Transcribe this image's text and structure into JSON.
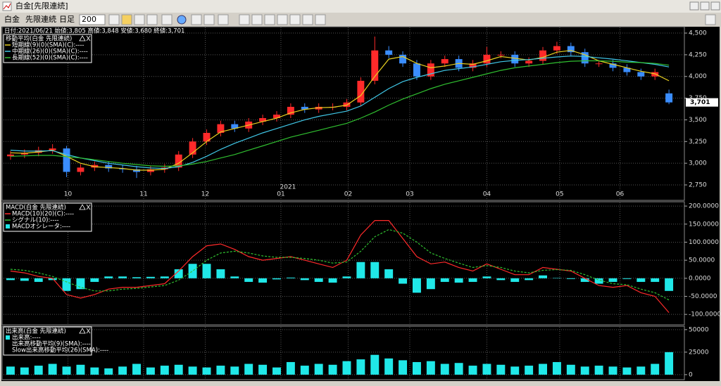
{
  "window": {
    "title": "白金[先限連続]",
    "toolbar": [
      "白金",
      "先限連続",
      "日足",
      "200"
    ]
  },
  "chart_data": [
    {
      "type": "candlestick",
      "info": "日付:2021/06/21 始値:3,805 高値:3,848 安値:3,680 終値:3,701",
      "legend_title": "移動平均(白金 先限連続)",
      "up_color": "#ff2a2a",
      "down_color": "#3a8dff",
      "open": [
        3080,
        3100,
        3120,
        3150,
        3170,
        2900,
        2950,
        2980,
        2940,
        2930,
        2900,
        2930,
        2950,
        3100,
        3250,
        3350,
        3450,
        3400,
        3480,
        3520,
        3560,
        3650,
        3620,
        3650,
        3650,
        3700,
        3950,
        4300,
        4250,
        4150,
        4000,
        4150,
        4200,
        4100,
        4150,
        4250,
        4250,
        4150,
        4180,
        4300,
        4350,
        4280,
        4150,
        4150,
        4100,
        4050,
        4000,
        3805
      ],
      "high": [
        3140,
        3160,
        3190,
        3220,
        3200,
        2990,
        3020,
        3020,
        2980,
        2970,
        2970,
        2990,
        3140,
        3290,
        3390,
        3490,
        3490,
        3520,
        3560,
        3600,
        3690,
        3690,
        3690,
        3690,
        3740,
        3990,
        4460,
        4350,
        4290,
        4190,
        4190,
        4240,
        4240,
        4190,
        4340,
        4290,
        4290,
        4220,
        4340,
        4400,
        4390,
        4320,
        4190,
        4190,
        4140,
        4090,
        4090,
        3848
      ],
      "low": [
        3040,
        3060,
        3080,
        3110,
        2840,
        2860,
        2910,
        2900,
        2890,
        2830,
        2860,
        2890,
        2910,
        3060,
        3210,
        3310,
        3360,
        3360,
        3440,
        3480,
        3520,
        3580,
        3580,
        3610,
        3610,
        3660,
        3910,
        4210,
        4110,
        3960,
        3960,
        4110,
        4060,
        4060,
        4110,
        4210,
        4110,
        4110,
        4140,
        4260,
        4240,
        4110,
        4110,
        4060,
        4010,
        3960,
        3960,
        3680
      ],
      "close": [
        3100,
        3120,
        3150,
        3170,
        2900,
        2950,
        2980,
        2940,
        2930,
        2900,
        2930,
        2950,
        3100,
        3250,
        3350,
        3450,
        3400,
        3480,
        3520,
        3560,
        3650,
        3620,
        3650,
        3650,
        3700,
        3950,
        4300,
        4250,
        4150,
        4000,
        4150,
        4200,
        4100,
        4150,
        4250,
        4250,
        4150,
        4180,
        4300,
        4350,
        4280,
        4150,
        4150,
        4100,
        4050,
        4000,
        4050,
        3701
      ],
      "series": [
        {
          "name": "短期線(9)(0)(SMA)(C):----",
          "color": "#e8d020",
          "values": [
            3120,
            3115,
            3130,
            3150,
            3080,
            3000,
            2960,
            2950,
            2940,
            2920,
            2920,
            2930,
            3000,
            3120,
            3250,
            3360,
            3400,
            3440,
            3480,
            3520,
            3580,
            3620,
            3640,
            3645,
            3670,
            3780,
            4000,
            4200,
            4230,
            4150,
            4100,
            4120,
            4150,
            4140,
            4180,
            4230,
            4210,
            4190,
            4220,
            4280,
            4300,
            4250,
            4180,
            4140,
            4100,
            4060,
            4030,
            3950
          ]
        },
        {
          "name": "中期線(26)(0)(SMA)(C):----",
          "color": "#40c8e8",
          "values": [
            3150,
            3140,
            3140,
            3145,
            3100,
            3060,
            3030,
            3000,
            2980,
            2960,
            2945,
            2940,
            2960,
            3010,
            3080,
            3160,
            3230,
            3290,
            3350,
            3400,
            3450,
            3500,
            3540,
            3570,
            3600,
            3660,
            3760,
            3860,
            3940,
            3990,
            4030,
            4070,
            4090,
            4110,
            4140,
            4170,
            4185,
            4195,
            4210,
            4225,
            4235,
            4230,
            4215,
            4200,
            4180,
            4160,
            4140,
            4110
          ]
        },
        {
          "name": "長期線(52)(0)(SMA)(C):----",
          "color": "#30c030",
          "values": [
            3080,
            3085,
            3090,
            3090,
            3075,
            3060,
            3040,
            3020,
            3000,
            2985,
            2970,
            2965,
            2970,
            2990,
            3020,
            3060,
            3100,
            3150,
            3200,
            3250,
            3300,
            3340,
            3380,
            3420,
            3460,
            3520,
            3590,
            3670,
            3740,
            3800,
            3860,
            3910,
            3950,
            3990,
            4030,
            4070,
            4100,
            4120,
            4140,
            4160,
            4175,
            4180,
            4180,
            4175,
            4165,
            4160,
            4150,
            4130
          ]
        }
      ],
      "xlim": [
        -0.5,
        48
      ],
      "xticks": [
        {
          "value": 4.1,
          "label": "10"
        },
        {
          "value": 9.5,
          "label": "11"
        },
        {
          "value": 13.9,
          "label": "12"
        },
        {
          "value": 19.3,
          "label": "01"
        },
        {
          "value": 24.1,
          "label": "02"
        },
        {
          "value": 28.5,
          "label": "03"
        },
        {
          "value": 34.0,
          "label": "04"
        },
        {
          "value": 39.2,
          "label": "05"
        },
        {
          "value": 43.5,
          "label": "06"
        }
      ],
      "year_label": "2021",
      "ylim": [
        2588,
        4557
      ],
      "yticks": [
        {
          "value": 2750,
          "label": "2,750"
        },
        {
          "value": 3000,
          "label": "3,000"
        },
        {
          "value": 3250,
          "label": "3,250"
        },
        {
          "value": 3500,
          "label": "3,500"
        },
        {
          "value": 3750,
          "label": "3,750"
        },
        {
          "value": 4000,
          "label": "4,000"
        },
        {
          "value": 4250,
          "label": "4,250"
        },
        {
          "value": 4500,
          "label": "4,500"
        }
      ],
      "last_value": 3701,
      "last_label": "3,701",
      "grid": true
    },
    {
      "type": "macd",
      "legend_title": "MACD(白金 先限連続)",
      "series": [
        {
          "name": "MACD(10)(20)(C):----",
          "color": "#ff2a2a",
          "kind": "line",
          "values": [
            20,
            15,
            5,
            0,
            -45,
            -55,
            -45,
            -30,
            -25,
            -25,
            -20,
            -15,
            20,
            60,
            90,
            95,
            80,
            60,
            50,
            55,
            60,
            50,
            40,
            30,
            50,
            120,
            160,
            160,
            110,
            60,
            40,
            45,
            30,
            20,
            40,
            25,
            10,
            10,
            30,
            25,
            20,
            0,
            -20,
            -25,
            -20,
            -40,
            -50,
            -95
          ]
        },
        {
          "name": "シグナル(10):----",
          "color": "#30c030",
          "kind": "dashed",
          "values": [
            25,
            22,
            15,
            5,
            -10,
            -25,
            -35,
            -35,
            -30,
            -28,
            -24,
            -20,
            -5,
            20,
            50,
            70,
            75,
            70,
            62,
            58,
            58,
            55,
            50,
            42,
            45,
            75,
            115,
            135,
            125,
            100,
            70,
            55,
            42,
            30,
            35,
            30,
            20,
            15,
            22,
            24,
            22,
            10,
            -5,
            -15,
            -18,
            -30,
            -40,
            -60
          ]
        },
        {
          "name": "MACDオシレータ:----",
          "color": "#20e8e8",
          "kind": "bar",
          "values": [
            -5,
            -7,
            -10,
            -5,
            -35,
            -30,
            -10,
            5,
            5,
            3,
            4,
            5,
            25,
            40,
            40,
            25,
            5,
            -10,
            -12,
            -3,
            2,
            -5,
            -10,
            -12,
            5,
            45,
            45,
            25,
            -15,
            -40,
            -30,
            -10,
            -12,
            -10,
            5,
            -5,
            -10,
            -5,
            8,
            1,
            -2,
            -10,
            -15,
            -10,
            -2,
            -10,
            -10,
            -35
          ]
        }
      ],
      "ylim": [
        -125,
        206
      ],
      "yticks": [
        {
          "value": -100,
          "label": "-100.0000"
        },
        {
          "value": -50,
          "label": "-50.0000"
        },
        {
          "value": 0,
          "label": "0.0000"
        },
        {
          "value": 50,
          "label": "50.0000"
        },
        {
          "value": 100,
          "label": "100.0000"
        },
        {
          "value": 150,
          "label": "150.0000"
        },
        {
          "value": 200,
          "label": "200.0000"
        }
      ],
      "grid": true
    },
    {
      "type": "bar",
      "legend_title": "出来高(白金 先限連続)",
      "series": [
        {
          "name": "出来高:----",
          "color": "#20e8e8",
          "values": [
            9000,
            8000,
            10000,
            12000,
            9000,
            11000,
            8000,
            7000,
            9000,
            12000,
            8000,
            10000,
            11000,
            9000,
            8000,
            10000,
            9000,
            12000,
            11000,
            8000,
            14000,
            10000,
            12000,
            11000,
            15000,
            17000,
            22000,
            18000,
            16000,
            14000,
            15000,
            12000,
            13000,
            10000,
            12000,
            11000,
            9000,
            10000,
            12000,
            14000,
            11000,
            9000,
            10000,
            9000,
            8000,
            9000,
            12000,
            25000
          ]
        }
      ],
      "legend_extra": [
        "出来高移動平均(9)(SMA):----",
        "Slow出来高移動平均(26)(SMA):----"
      ],
      "ylim": [
        -4000,
        53000
      ],
      "yticks": [
        0,
        25000,
        50000
      ],
      "grid": true
    }
  ]
}
